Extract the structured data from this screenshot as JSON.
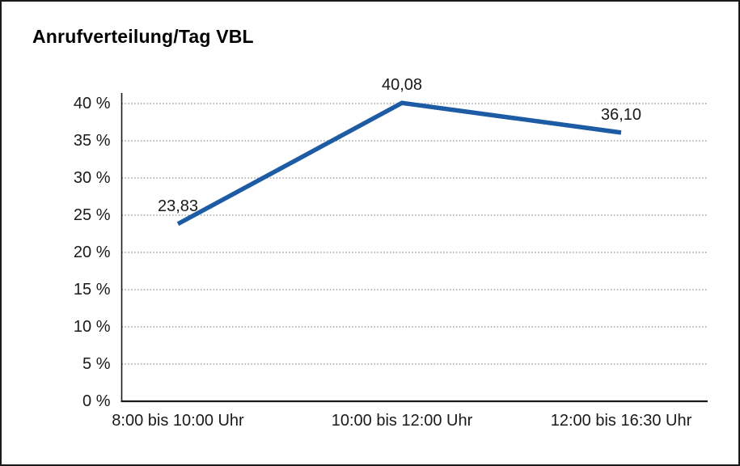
{
  "chart_data": {
    "type": "line",
    "title": "Anrufverteilung/Tag VBL",
    "categories": [
      "8:00 bis 10:00 Uhr",
      "10:00 bis 12:00 Uhr",
      "12:00 bis 16:30 Uhr"
    ],
    "values": [
      23.83,
      40.08,
      36.1
    ],
    "value_labels": [
      "23,83",
      "40,08",
      "36,10"
    ],
    "xlabel": "",
    "ylabel": "",
    "ylim": [
      0,
      40
    ],
    "ytick_step": 5,
    "ytick_labels": [
      "0 %",
      "5 %",
      "10 %",
      "15 %",
      "20 %",
      "25 %",
      "30 %",
      "35 %",
      "40 %"
    ],
    "legend": "none",
    "grid": "horizontal-dotted",
    "line_color": "#1d5ba4",
    "axis_color": "#1a1a1a",
    "grid_color": "#8c8c8c"
  }
}
